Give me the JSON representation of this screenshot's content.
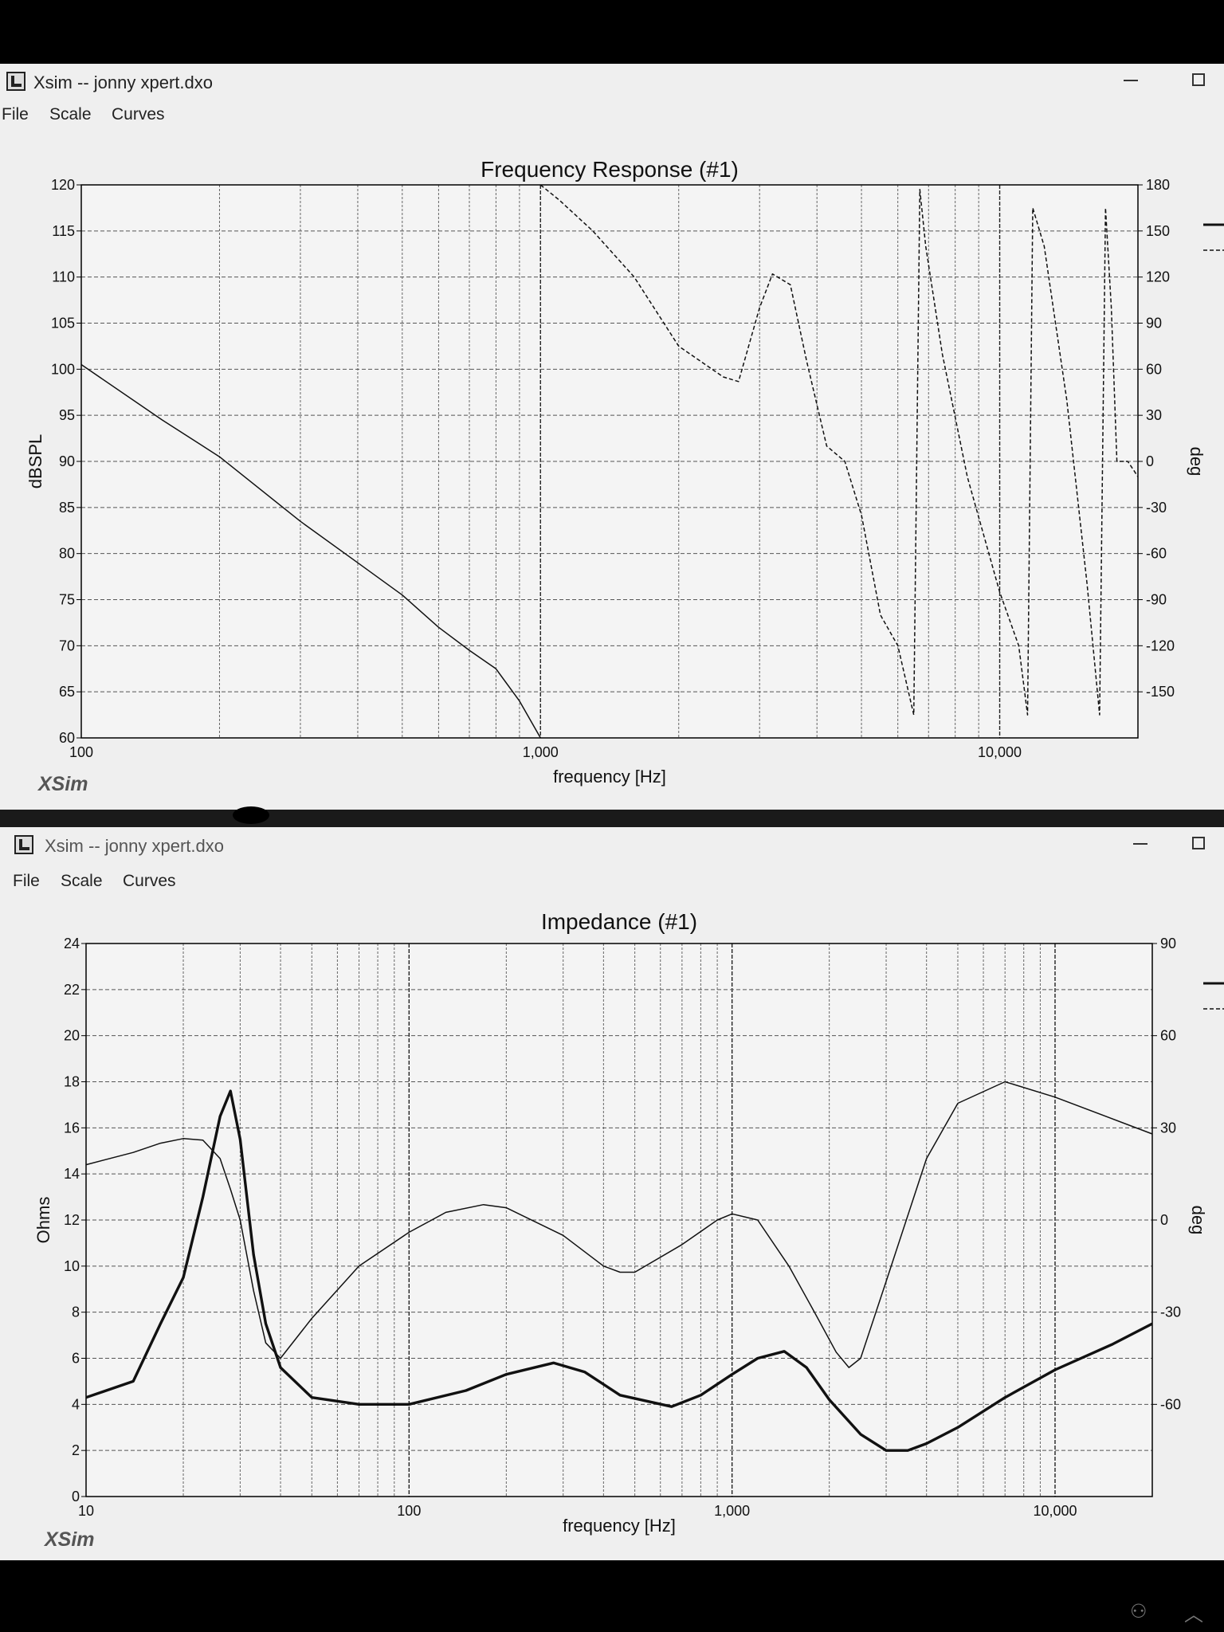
{
  "window1": {
    "title": "Xsim -- jonny xpert.dxo",
    "menu": [
      "File",
      "Scale",
      "Curves"
    ],
    "brand": "XSim"
  },
  "window2": {
    "title": "Xsim -- jonny xpert.dxo",
    "menu": [
      "File",
      "Scale",
      "Curves"
    ],
    "brand": "XSim"
  },
  "tray_icons": [
    "people-icon",
    "chevron-up-icon"
  ],
  "colors": {
    "window_bg": "#efefef",
    "grid": "#666666",
    "curve": "#111111",
    "frame": "#000000"
  },
  "chart_data": [
    {
      "type": "line",
      "title": "Frequency Response (#1)",
      "xlabel": "frequency [Hz]",
      "ylabel": "dBSPL",
      "y2label": "deg",
      "xscale": "log",
      "xlim": [
        100,
        20000
      ],
      "ylim": [
        60,
        120
      ],
      "y2lim": [
        -180,
        180
      ],
      "xticklabels": [
        "100",
        "1,000",
        "10,000"
      ],
      "yticks": [
        60,
        65,
        70,
        75,
        80,
        85,
        90,
        95,
        100,
        105,
        110,
        115,
        120
      ],
      "y2ticks": [
        -150,
        -120,
        -90,
        -60,
        -30,
        0,
        30,
        60,
        90,
        120,
        150,
        180
      ],
      "grid": true,
      "series": [
        {
          "style": "solid",
          "axis": "left",
          "x": [
            100,
            150,
            200,
            300,
            400,
            500,
            600,
            700,
            800,
            900,
            1000
          ],
          "y": [
            100.5,
            94.5,
            90.5,
            83.5,
            79,
            75.5,
            72,
            69.5,
            67.5,
            64,
            60
          ]
        },
        {
          "style": "dashed",
          "axis": "right",
          "x": [
            1000,
            1100,
            1300,
            1600,
            2000,
            2500,
            2700,
            3000,
            3200,
            3500,
            3800,
            4200,
            4600,
            5000,
            5500,
            6000,
            6500,
            6700,
            6900,
            7500,
            8500,
            10000,
            11000,
            11500,
            11800,
            12500,
            14000,
            15500,
            16500,
            17000,
            17500,
            18000,
            19000,
            19500,
            20000
          ],
          "y": [
            180,
            170,
            150,
            120,
            75,
            55,
            52,
            100,
            122,
            115,
            65,
            10,
            0,
            -35,
            -100,
            -120,
            -165,
            177,
            140,
            70,
            -10,
            -85,
            -120,
            -165,
            165,
            140,
            40,
            -80,
            -165,
            165,
            100,
            0,
            0,
            -5,
            -10
          ]
        }
      ]
    },
    {
      "type": "line",
      "title": "Impedance (#1)",
      "xlabel": "frequency [Hz]",
      "ylabel": "Ohms",
      "y2label": "deg",
      "xscale": "log",
      "xlim": [
        10,
        20000
      ],
      "ylim": [
        0,
        24
      ],
      "y2lim": [
        -90,
        90
      ],
      "xticklabels": [
        "10",
        "100",
        "1,000",
        "10,000"
      ],
      "yticks": [
        0,
        2,
        4,
        6,
        8,
        10,
        12,
        14,
        16,
        18,
        20,
        22,
        24
      ],
      "y2ticks": [
        -60,
        -30,
        0,
        30,
        60,
        90
      ],
      "grid": true,
      "series": [
        {
          "style": "thick",
          "axis": "left",
          "x": [
            10,
            14,
            17,
            20,
            23,
            26,
            28,
            30,
            33,
            36,
            40,
            50,
            70,
            100,
            150,
            200,
            280,
            350,
            450,
            650,
            800,
            1000,
            1200,
            1450,
            1700,
            2000,
            2500,
            3000,
            3500,
            4000,
            5000,
            7000,
            10000,
            15000,
            20000
          ],
          "y": [
            4.3,
            5,
            7.5,
            9.5,
            13,
            16.5,
            17.6,
            15.5,
            10.5,
            7.5,
            5.6,
            4.3,
            4,
            4,
            4.6,
            5.3,
            5.8,
            5.4,
            4.4,
            3.9,
            4.4,
            5.3,
            6,
            6.3,
            5.6,
            4.2,
            2.7,
            2,
            2,
            2.3,
            3,
            4.3,
            5.5,
            6.6,
            7.5
          ]
        },
        {
          "style": "thin",
          "axis": "right",
          "x": [
            10,
            14,
            17,
            20,
            23,
            26,
            28,
            30,
            33,
            36,
            40,
            50,
            70,
            100,
            130,
            170,
            200,
            300,
            400,
            450,
            500,
            700,
            900,
            1000,
            1200,
            1500,
            1800,
            2100,
            2300,
            2500,
            3000,
            4000,
            5000,
            7000,
            10000,
            15000,
            20000
          ],
          "y": [
            18,
            22,
            25,
            26.5,
            26,
            20,
            10,
            0,
            -23,
            -40,
            -45,
            -32,
            -15,
            -4,
            2.5,
            5,
            4,
            -5,
            -15,
            -17,
            -17,
            -8,
            0,
            2,
            0,
            -15,
            -30,
            -43,
            -48,
            -45,
            -20,
            20,
            38,
            45,
            40,
            33,
            28
          ]
        }
      ]
    }
  ]
}
